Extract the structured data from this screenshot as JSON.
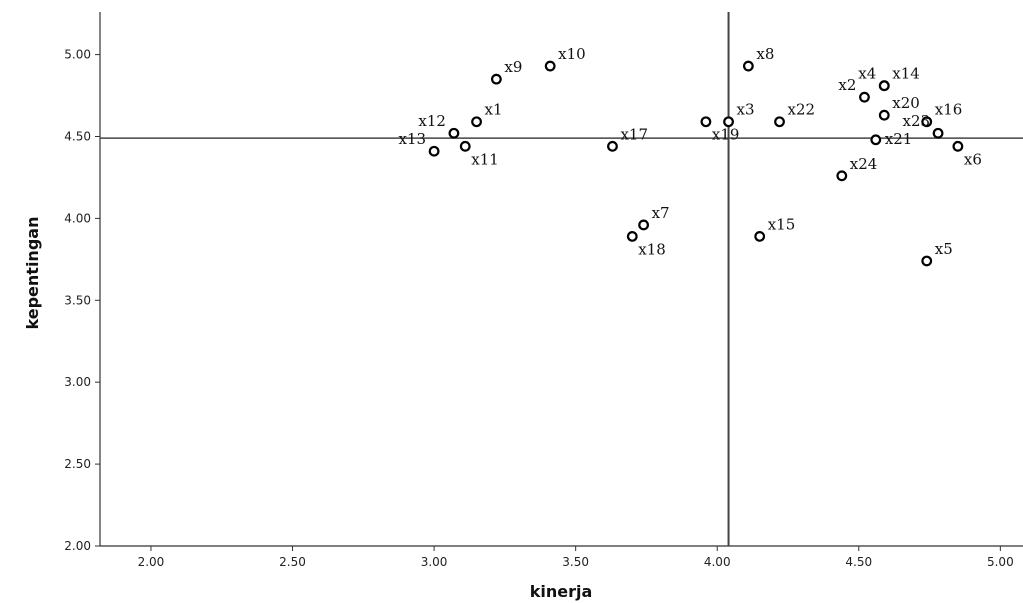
{
  "chart_data": {
    "type": "scatter",
    "xlabel": "kinerja",
    "ylabel": "kepentingan",
    "xlim": [
      1.82,
      5.08
    ],
    "ylim": [
      2.0,
      5.26
    ],
    "xticks": [
      "2.00",
      "2.50",
      "3.00",
      "3.50",
      "4.00",
      "4.50",
      "5.00"
    ],
    "yticks": [
      "2.00",
      "2.50",
      "3.00",
      "3.50",
      "4.00",
      "4.50",
      "5.00"
    ],
    "reference_lines": {
      "x": 4.04,
      "y": 4.49
    },
    "grid": false,
    "points": [
      {
        "label": "x1",
        "x": 3.15,
        "y": 4.59,
        "label_pos": "ne"
      },
      {
        "label": "x2",
        "x": 4.52,
        "y": 4.74,
        "label_pos": "nw"
      },
      {
        "label": "x3",
        "x": 4.04,
        "y": 4.59,
        "label_pos": "ne"
      },
      {
        "label": "x4",
        "x": 4.59,
        "y": 4.81,
        "label_pos": "nw"
      },
      {
        "label": "x5",
        "x": 4.74,
        "y": 3.74,
        "label_pos": "ne"
      },
      {
        "label": "x6",
        "x": 4.85,
        "y": 4.44,
        "label_pos": "se"
      },
      {
        "label": "x7",
        "x": 3.74,
        "y": 3.96,
        "label_pos": "ne"
      },
      {
        "label": "x8",
        "x": 4.11,
        "y": 4.93,
        "label_pos": "ne"
      },
      {
        "label": "x9",
        "x": 3.22,
        "y": 4.85,
        "label_pos": "ne"
      },
      {
        "label": "x10",
        "x": 3.41,
        "y": 4.93,
        "label_pos": "ne"
      },
      {
        "label": "x11",
        "x": 3.11,
        "y": 4.44,
        "label_pos": "se"
      },
      {
        "label": "x12",
        "x": 3.07,
        "y": 4.52,
        "label_pos": "nw"
      },
      {
        "label": "x13",
        "x": 3.0,
        "y": 4.41,
        "label_pos": "nw"
      },
      {
        "label": "x14",
        "x": 4.59,
        "y": 4.81,
        "label_pos": "ne"
      },
      {
        "label": "x15",
        "x": 4.15,
        "y": 3.89,
        "label_pos": "ne"
      },
      {
        "label": "x16",
        "x": 4.74,
        "y": 4.59,
        "label_pos": "ne"
      },
      {
        "label": "x17",
        "x": 3.63,
        "y": 4.44,
        "label_pos": "ne"
      },
      {
        "label": "x18",
        "x": 3.7,
        "y": 3.89,
        "label_pos": "se"
      },
      {
        "label": "x19",
        "x": 3.96,
        "y": 4.59,
        "label_pos": "se"
      },
      {
        "label": "x20",
        "x": 4.59,
        "y": 4.63,
        "label_pos": "ne"
      },
      {
        "label": "x21",
        "x": 4.56,
        "y": 4.48,
        "label_pos": "e"
      },
      {
        "label": "x22",
        "x": 4.22,
        "y": 4.59,
        "label_pos": "ne"
      },
      {
        "label": "x23",
        "x": 4.78,
        "y": 4.52,
        "label_pos": "nw"
      },
      {
        "label": "x24",
        "x": 4.44,
        "y": 4.26,
        "label_pos": "ne"
      }
    ]
  }
}
